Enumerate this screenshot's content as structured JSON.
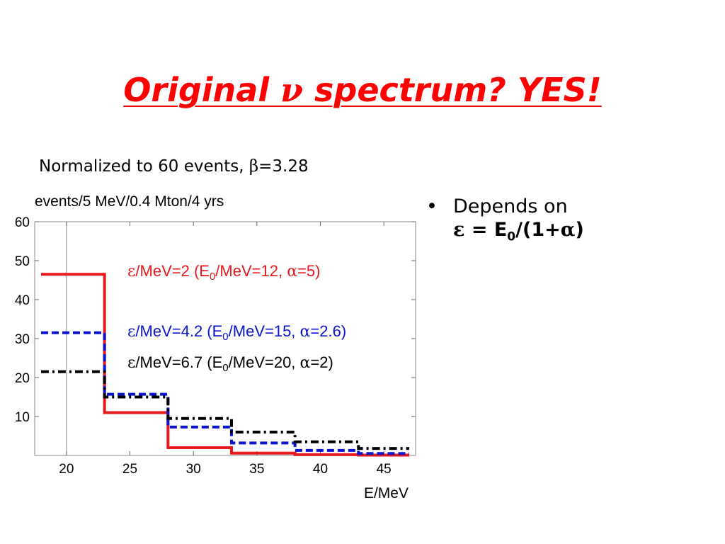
{
  "slide": {
    "title_part1": "Original ",
    "title_nu": "ν",
    "title_part2": " spectrum? YES!",
    "subtitle_text": "Normalized to 60 events, ",
    "subtitle_beta": "β",
    "subtitle_value": "=3.28",
    "bullet_marker": "•",
    "bullet_line1": "Depends on",
    "bullet_eps": "ε",
    "bullet_eq": " = E",
    "bullet_sub": "0",
    "bullet_paren": "/(1+",
    "bullet_alpha": "α",
    "bullet_close": ")",
    "colors": {
      "title": "#ff0000",
      "red_series": "#e8191c",
      "blue_series": "#0a14cc",
      "black_series": "#000000"
    }
  },
  "chart_data": {
    "type": "line",
    "step": true,
    "ylabel": "events/5 MeV/0.4 Mton/4 yrs",
    "xlabel": "E/MeV",
    "xlim": [
      17.5,
      47.5
    ],
    "ylim": [
      0,
      60
    ],
    "xticks": [
      20,
      25,
      30,
      35,
      40,
      45
    ],
    "yticks": [
      10,
      20,
      30,
      40,
      50,
      60
    ],
    "vline_x": 20,
    "bin_edges": [
      18,
      23,
      28,
      33,
      38,
      43,
      47
    ],
    "series": [
      {
        "name": "ε/MeV=2 (E0/MeV=12, α=5)",
        "legend": {
          "eps": "ε",
          "a": "/MeV=2 (E",
          "sub": "0",
          "b": "/MeV=12, ",
          "alpha": "α",
          "c": "=5)"
        },
        "color": "#e8191c",
        "dash": "solid",
        "values": [
          46.5,
          11,
          2,
          0.6,
          0.2,
          0.1
        ]
      },
      {
        "name": "ε/MeV=4.2 (E0/MeV=15, α=2.6)",
        "legend": {
          "eps": "ε",
          "a": "/MeV=4.2 (E",
          "sub": "0",
          "b": "/MeV=15, ",
          "alpha": "α",
          "c": "=2.6)"
        },
        "color": "#0a14cc",
        "dash": "dashed",
        "values": [
          31.5,
          15.7,
          7.3,
          3.2,
          1.3,
          0.5
        ]
      },
      {
        "name": "ε/MeV=6.7 (E0/MeV=20, α=2)",
        "legend": {
          "eps": "ε",
          "a": "/MeV=6.7 (E",
          "sub": "0",
          "b": "/MeV=20, ",
          "alpha": "α",
          "c": "=2)"
        },
        "color": "#000000",
        "dash": "dashdot",
        "values": [
          21.5,
          15,
          9.5,
          6,
          3.5,
          1.8
        ]
      }
    ]
  }
}
